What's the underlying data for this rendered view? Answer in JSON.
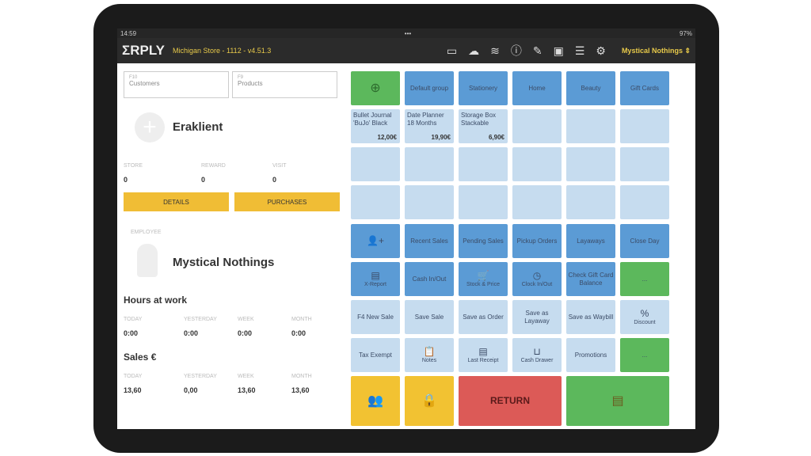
{
  "status": {
    "time": "14:59",
    "battery": "97%"
  },
  "header": {
    "logo": "ΣRPLY",
    "store": "Michigan Store - 1112 - v4.51.3",
    "user": "Mystical Nothings"
  },
  "search": {
    "customers_key": "F10",
    "customers": "Customers",
    "products_key": "F9",
    "products": "Products"
  },
  "customer": {
    "name": "Eraklient",
    "stats": [
      {
        "label": "STORE",
        "value": "0"
      },
      {
        "label": "REWARD",
        "value": "0"
      },
      {
        "label": "VISIT",
        "value": "0"
      }
    ],
    "details": "DETAILS",
    "purchases": "PURCHASES"
  },
  "employee": {
    "label": "EMPLOYEE",
    "name": "Mystical Nothings"
  },
  "hours": {
    "title": "Hours at work",
    "cols": [
      {
        "label": "TODAY",
        "value": "0:00"
      },
      {
        "label": "YESTERDAY",
        "value": "0:00"
      },
      {
        "label": "WEEK",
        "value": "0:00"
      },
      {
        "label": "MONTH",
        "value": "0:00"
      }
    ]
  },
  "sales": {
    "title": "Sales €",
    "cols": [
      {
        "label": "TODAY",
        "value": "13,60"
      },
      {
        "label": "YESTERDAY",
        "value": "0,00"
      },
      {
        "label": "WEEK",
        "value": "13,60"
      },
      {
        "label": "MONTH",
        "value": "13,60"
      }
    ]
  },
  "tiles": [
    {
      "c": "g",
      "icon": "⊕",
      "n": "add-group"
    },
    {
      "c": "b",
      "t": "Default group"
    },
    {
      "c": "b",
      "t": "Stationery"
    },
    {
      "c": "b",
      "t": "Home"
    },
    {
      "c": "b",
      "t": "Beauty"
    },
    {
      "c": "b",
      "t": "Gift Cards"
    },
    {
      "c": "l",
      "t": "Bullet Journal 'BuJo' Black",
      "price": "12,00€"
    },
    {
      "c": "l",
      "t": "Date Planner 18 Months",
      "price": "19,90€"
    },
    {
      "c": "l",
      "t": "Storage Box Stackable",
      "price": "6,90€"
    },
    {
      "c": "l"
    },
    {
      "c": "l"
    },
    {
      "c": "l"
    },
    {
      "c": "l"
    },
    {
      "c": "l"
    },
    {
      "c": "l"
    },
    {
      "c": "l"
    },
    {
      "c": "l"
    },
    {
      "c": "l"
    },
    {
      "c": "l"
    },
    {
      "c": "l"
    },
    {
      "c": "l"
    },
    {
      "c": "l"
    },
    {
      "c": "l"
    },
    {
      "c": "l"
    },
    {
      "c": "b",
      "icon": "👤+",
      "n": "add-customer"
    },
    {
      "c": "b",
      "t": "Recent Sales"
    },
    {
      "c": "b",
      "t": "Pending Sales"
    },
    {
      "c": "b",
      "t": "Pickup Orders"
    },
    {
      "c": "b",
      "t": "Layaways"
    },
    {
      "c": "b",
      "t": "Close Day"
    },
    {
      "c": "b",
      "icon": "▤",
      "t": "X-Report"
    },
    {
      "c": "b",
      "t": "Cash In/Out"
    },
    {
      "c": "b",
      "icon": "🛒",
      "t": "Stock & Price"
    },
    {
      "c": "b",
      "icon": "◷",
      "t": "Clock In/Out"
    },
    {
      "c": "b",
      "t": "Check Gift Card Balance"
    },
    {
      "c": "g",
      "t": "..."
    },
    {
      "c": "l",
      "t": "F4 New Sale"
    },
    {
      "c": "l",
      "t": "Save Sale"
    },
    {
      "c": "l",
      "t": "Save as Order"
    },
    {
      "c": "l",
      "t": "Save as Layaway"
    },
    {
      "c": "l",
      "t": "Save as Waybill"
    },
    {
      "c": "l",
      "icon": "%",
      "t": "Discount"
    },
    {
      "c": "l",
      "t": "Tax Exempt"
    },
    {
      "c": "l",
      "icon": "📋",
      "t": "Notes"
    },
    {
      "c": "l",
      "icon": "▤",
      "t": "Last Receipt"
    },
    {
      "c": "l",
      "icon": "⊔",
      "t": "Cash Drawer"
    },
    {
      "c": "l",
      "t": "Promotions"
    },
    {
      "c": "g",
      "t": "..."
    }
  ],
  "bottom": [
    {
      "c": "y",
      "icon": "👥",
      "n": "customers"
    },
    {
      "c": "y",
      "icon": "🔒",
      "n": "lock"
    },
    {
      "c": "r",
      "t": "RETURN",
      "n": "return"
    },
    {
      "c": "g",
      "icon": "▤",
      "n": "pay"
    }
  ]
}
